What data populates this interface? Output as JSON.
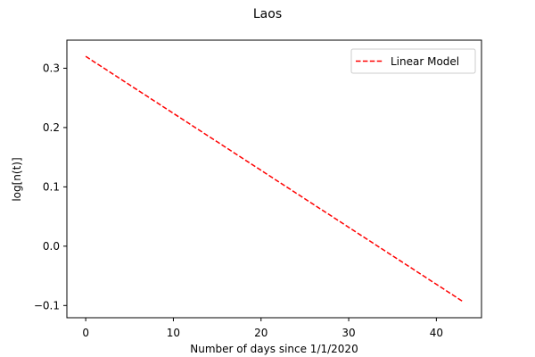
{
  "chart_data": {
    "type": "line",
    "title": "Laos",
    "xlabel": "Number of days since 1/1/2020",
    "ylabel": "log[n(t)]",
    "xlim": [
      -2.15,
      45.15
    ],
    "ylim": [
      -0.1206,
      0.3473
    ],
    "x_ticks": [
      0,
      10,
      20,
      30,
      40
    ],
    "y_ticks": [
      -0.1,
      0.0,
      0.1,
      0.2,
      0.3
    ],
    "y_tick_labels": [
      "−0.1",
      "0.0",
      "0.1",
      "0.2",
      "0.3"
    ],
    "grid": false,
    "legend": {
      "placement": "top-right"
    },
    "series": [
      {
        "name": "Linear Model",
        "color": "#ff0000",
        "line_style": "dashed",
        "x": [
          0,
          43
        ],
        "y": [
          0.32,
          -0.093
        ]
      }
    ]
  }
}
